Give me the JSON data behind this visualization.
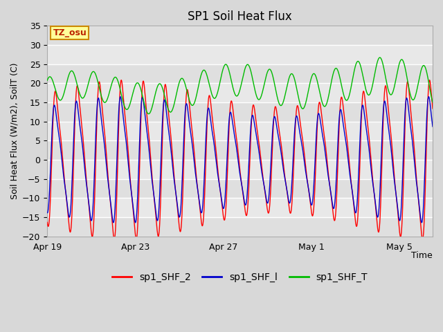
{
  "title": "SP1 Soil Heat Flux",
  "xlabel": "Time",
  "ylabel": "Soil Heat Flux (W/m2), SoilT (C)",
  "ylim": [
    -20,
    35
  ],
  "yticks": [
    -20,
    -15,
    -10,
    -5,
    0,
    5,
    10,
    15,
    20,
    25,
    30,
    35
  ],
  "xlim": [
    0,
    17.5
  ],
  "xtick_labels": [
    "Apr 19",
    "Apr 23",
    "Apr 27",
    "May 1",
    "May 5"
  ],
  "xtick_positions": [
    0,
    4,
    8,
    12,
    16
  ],
  "bg_color": "#d8d8d8",
  "plot_bg_color": "#e8e8e8",
  "grid_color": "#ffffff",
  "line_colors": [
    "#ff0000",
    "#0000cc",
    "#00bb00"
  ],
  "legend_labels": [
    "sp1_SHF_2",
    "sp1_SHF_l",
    "sp1_SHF_T"
  ],
  "annotation_text": "TZ_osu",
  "annotation_fg": "#bb2200",
  "annotation_bg": "#ffff99",
  "annotation_border": "#cc8800",
  "title_fontsize": 12,
  "label_fontsize": 9,
  "tick_fontsize": 9,
  "legend_fontsize": 10
}
